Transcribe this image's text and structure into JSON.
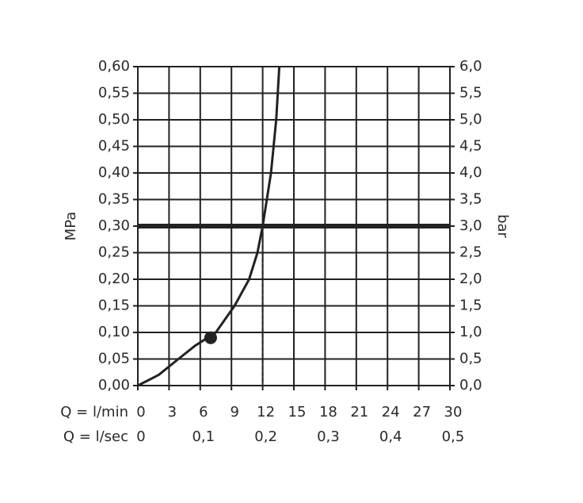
{
  "chart_data": {
    "type": "line",
    "y_label": "MPa",
    "y2_label": "bar",
    "x_row_label": "Q = l/min",
    "x2_row_label": "Q = l/sec",
    "x": [
      0,
      2,
      3.9,
      5.5,
      7.5,
      9.3,
      10.7,
      11.5,
      12,
      12.8,
      13.3,
      13.6
    ],
    "values": [
      0,
      0.02,
      0.05,
      0.075,
      0.1,
      0.15,
      0.2,
      0.25,
      0.3,
      0.4,
      0.5,
      0.6
    ],
    "color": "#222222",
    "point": {
      "x": 7,
      "y": 0.09
    },
    "reference": {
      "x": 12,
      "y": 0.3
    },
    "xlim": [
      0,
      30
    ],
    "xticks": [
      0,
      3,
      6,
      9,
      12,
      15,
      18,
      21,
      24,
      27,
      30
    ],
    "x2lim": [
      0,
      0.5
    ],
    "x2ticks": [
      0,
      {
        "value": 0.1,
        "label": "0,1"
      },
      {
        "value": 0.2,
        "label": "0,2"
      },
      {
        "value": 0.3,
        "label": "0,3"
      },
      {
        "value": 0.4,
        "label": "0,4"
      },
      {
        "value": 0.5,
        "label": "0,5"
      }
    ],
    "ylim": [
      0,
      0.6
    ],
    "yticks": [
      {
        "value": 0,
        "label": "0,00"
      },
      {
        "value": 0.05,
        "label": "0,05"
      },
      {
        "value": 0.1,
        "label": "0,10"
      },
      {
        "value": 0.15,
        "label": "0,15"
      },
      {
        "value": 0.2,
        "label": "0,20"
      },
      {
        "value": 0.25,
        "label": "0,25"
      },
      {
        "value": 0.3,
        "label": "0,30"
      },
      {
        "value": 0.35,
        "label": "0,35"
      },
      {
        "value": 0.4,
        "label": "0,40"
      },
      {
        "value": 0.45,
        "label": "0,45"
      },
      {
        "value": 0.5,
        "label": "0,50"
      },
      {
        "value": 0.55,
        "label": "0,55"
      },
      {
        "value": 0.6,
        "label": "0,60"
      }
    ],
    "y2lim": [
      0,
      6
    ],
    "y2ticks": [
      {
        "value": 0,
        "label": "0,0"
      },
      {
        "value": 0.5,
        "label": "0,5"
      },
      {
        "value": 1,
        "label": "1,0"
      },
      {
        "value": 1.5,
        "label": "1,5"
      },
      {
        "value": 2,
        "label": "2,0"
      },
      {
        "value": 2.5,
        "label": "2,5"
      },
      {
        "value": 3,
        "label": "3,0"
      },
      {
        "value": 3.5,
        "label": "3,5"
      },
      {
        "value": 4,
        "label": "4,0"
      },
      {
        "value": 4.5,
        "label": "4,5"
      },
      {
        "value": 5,
        "label": "5,0"
      },
      {
        "value": 5.5,
        "label": "5,5"
      },
      {
        "value": 6,
        "label": "6,0"
      }
    ],
    "grid": true
  }
}
